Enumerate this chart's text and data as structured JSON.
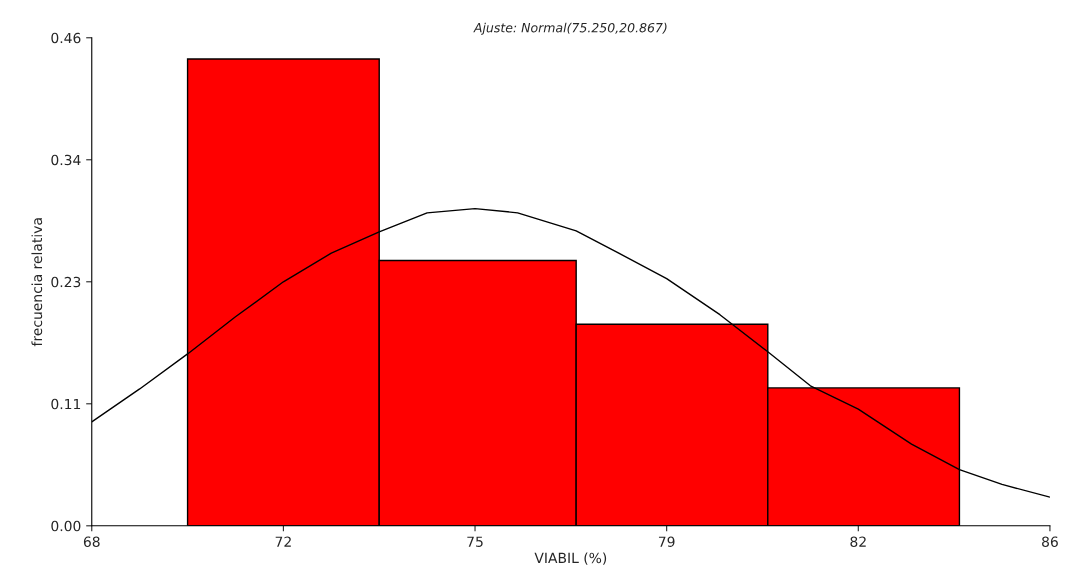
{
  "chart_data": {
    "type": "histogram",
    "title": "Ajuste: Normal(75.250,20.867)",
    "xlabel": "VIABIL (%)",
    "ylabel": "frecuencia relativa",
    "xlim": [
      68,
      86
    ],
    "xticks": [
      68,
      {
        "value": 71.6,
        "label": "72"
      },
      {
        "value": 75.2,
        "label": "75"
      },
      {
        "value": 78.8,
        "label": "79"
      },
      {
        "value": 82.4,
        "label": "82"
      },
      86
    ],
    "ylim": [
      0,
      0.46
    ],
    "yticks": [
      {
        "value": 0,
        "label": "0.00"
      },
      {
        "value": 0.115,
        "label": "0.11"
      },
      {
        "value": 0.23,
        "label": "0.23"
      },
      {
        "value": 0.345,
        "label": "0.34"
      },
      {
        "value": 0.46,
        "label": "0.46"
      }
    ],
    "grid": false,
    "legend": false,
    "series": [
      {
        "type": "histogram",
        "color": "#ff0000",
        "bins": [
          69.8,
          73.4,
          77.1,
          80.7,
          84.3
        ],
        "values": [
          0.44,
          0.25,
          0.19,
          0.13
        ]
      },
      {
        "type": "line",
        "color": "#000000",
        "x": [
          68,
          68.9,
          69.8,
          70.7,
          71.6,
          72.5,
          73.4,
          74.3,
          75.2,
          76.0,
          77.1,
          77.9,
          78.8,
          79.8,
          80.7,
          81.5,
          82.4,
          83.4,
          84.3,
          85.1,
          86
        ],
        "values": [
          0.098,
          0.129,
          0.162,
          0.197,
          0.23,
          0.257,
          0.277,
          0.295,
          0.299,
          0.295,
          0.278,
          0.257,
          0.233,
          0.199,
          0.164,
          0.132,
          0.11,
          0.077,
          0.053,
          0.039,
          0.027
        ]
      }
    ]
  }
}
